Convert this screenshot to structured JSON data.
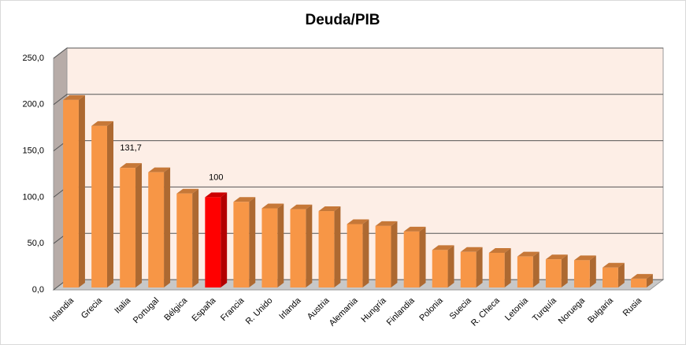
{
  "chart_data": {
    "type": "bar3d",
    "title": "Deuda/PIB",
    "categories": [
      "Islandia",
      "Grecia",
      "Italia",
      "Portugal",
      "Bélgica",
      "España",
      "Francia",
      "R. Unido",
      "Irlanda",
      "Austria",
      "Alemania",
      "Hungría",
      "Finlandia",
      "Polonia",
      "Suecia",
      "R. Checa",
      "Letonia",
      "Turquía",
      "Noruega",
      "Bulgaria",
      "Rusia"
    ],
    "values": [
      205,
      177,
      131.7,
      127,
      104,
      100,
      95,
      88,
      87,
      85,
      71,
      69,
      63,
      43,
      41,
      40,
      36,
      33,
      32,
      24,
      12
    ],
    "value_labels": [
      null,
      null,
      "131,7",
      null,
      null,
      "100",
      null,
      null,
      null,
      null,
      null,
      null,
      null,
      null,
      null,
      null,
      null,
      null,
      null,
      null,
      null
    ],
    "colors": [
      "#f79646",
      "#f79646",
      "#f79646",
      "#f79646",
      "#f79646",
      "#ff0000",
      "#f79646",
      "#f79646",
      "#f79646",
      "#f79646",
      "#f79646",
      "#f79646",
      "#f79646",
      "#f79646",
      "#f79646",
      "#f79646",
      "#f79646",
      "#f79646",
      "#f79646",
      "#f79646",
      "#f79646"
    ],
    "ylim": [
      0,
      250
    ],
    "yticks": [
      {
        "value": 0,
        "label": "0,0"
      },
      {
        "value": 50,
        "label": "50,0"
      },
      {
        "value": 100,
        "label": "100,0"
      },
      {
        "value": 150,
        "label": "150,0"
      },
      {
        "value": 200,
        "label": "200,0"
      },
      {
        "value": 250,
        "label": "250,0"
      }
    ],
    "grid": true
  }
}
